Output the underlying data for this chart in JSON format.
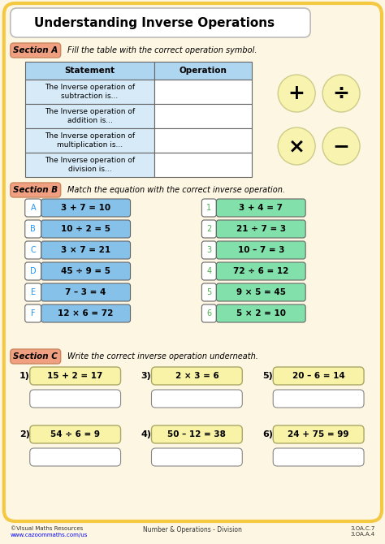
{
  "title": "Understanding Inverse Operations",
  "bg_color": "#fdf6e3",
  "outer_border_color": "#f5c842",
  "section_a_label": "Section A",
  "section_a_instruction": "Fill the table with the correct operation symbol.",
  "section_b_label": "Section B",
  "section_b_instruction": "Match the equation with the correct inverse operation.",
  "section_c_label": "Section C",
  "section_c_instruction": "Write the correct inverse operation underneath.",
  "table_header_color": "#aed6f1",
  "table_row_color": "#d6eaf8",
  "table_statements": [
    "The Inverse operation of\nsubtraction is...",
    "The Inverse operation of\naddition is...",
    "The Inverse operation of\nmultiplication is...",
    "The Inverse operation of\ndivision is..."
  ],
  "symbol_color": "#f9f3b0",
  "symbols": [
    "+",
    "÷",
    "×",
    "−"
  ],
  "left_equations": [
    "3 + 7 = 10",
    "10 ÷ 2 = 5",
    "3 × 7 = 21",
    "45 ÷ 9 = 5",
    "7 – 3 = 4",
    "12 × 6 = 72"
  ],
  "left_labels": [
    "A",
    "B",
    "C",
    "D",
    "E",
    "F"
  ],
  "left_eq_color": "#85c1e9",
  "right_equations": [
    "3 + 4 = 7",
    "21 ÷ 7 = 3",
    "10 – 7 = 3",
    "72 ÷ 6 = 12",
    "9 × 5 = 45",
    "5 × 2 = 10"
  ],
  "right_labels": [
    "1",
    "2",
    "3",
    "4",
    "5",
    "6"
  ],
  "right_eq_color": "#82e0aa",
  "section_c_top_equations": [
    "15 + 2 = 17",
    "2 × 3 = 6",
    "20 – 6 = 14"
  ],
  "section_c_bottom_equations": [
    "54 ÷ 6 = 9",
    "50 – 12 = 38",
    "24 + 75 = 99"
  ],
  "section_c_top_labels": [
    "1)",
    "3)",
    "5)"
  ],
  "section_c_bottom_labels": [
    "2)",
    "4)",
    "6)"
  ],
  "section_c_eq_color": "#f9f3a8",
  "footer_left1": "©Visual Maths Resources",
  "footer_left2": "www.cazoommaths.com/us",
  "footer_center": "Number & Operations - Division",
  "footer_right": "3.OA.C.7\n3.OA.A.4"
}
